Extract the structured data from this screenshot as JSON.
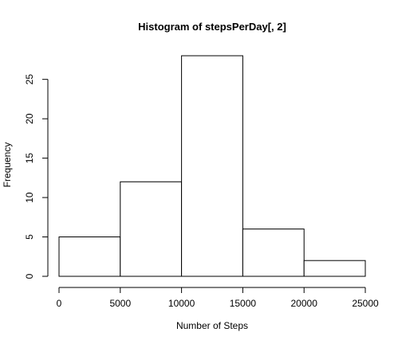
{
  "chart_data": {
    "type": "bar",
    "title": "Histogram of stepsPerDay[, 2]",
    "xlabel": "Number of Steps",
    "ylabel": "Frequency",
    "bins": [
      {
        "from": 0,
        "to": 5000,
        "value": 5
      },
      {
        "from": 5000,
        "to": 10000,
        "value": 12
      },
      {
        "from": 10000,
        "to": 15000,
        "value": 28
      },
      {
        "from": 15000,
        "to": 20000,
        "value": 6
      },
      {
        "from": 20000,
        "to": 25000,
        "value": 2
      }
    ],
    "xlim": [
      0,
      25000
    ],
    "ylim": [
      0,
      28
    ],
    "x_ticks": [
      0,
      5000,
      10000,
      15000,
      20000,
      25000
    ],
    "y_ticks": [
      0,
      5,
      10,
      15,
      20,
      25
    ],
    "grid": false,
    "colors": {
      "bar_fill": "#ffffff",
      "bar_stroke": "#000000",
      "background": "#ffffff"
    }
  }
}
